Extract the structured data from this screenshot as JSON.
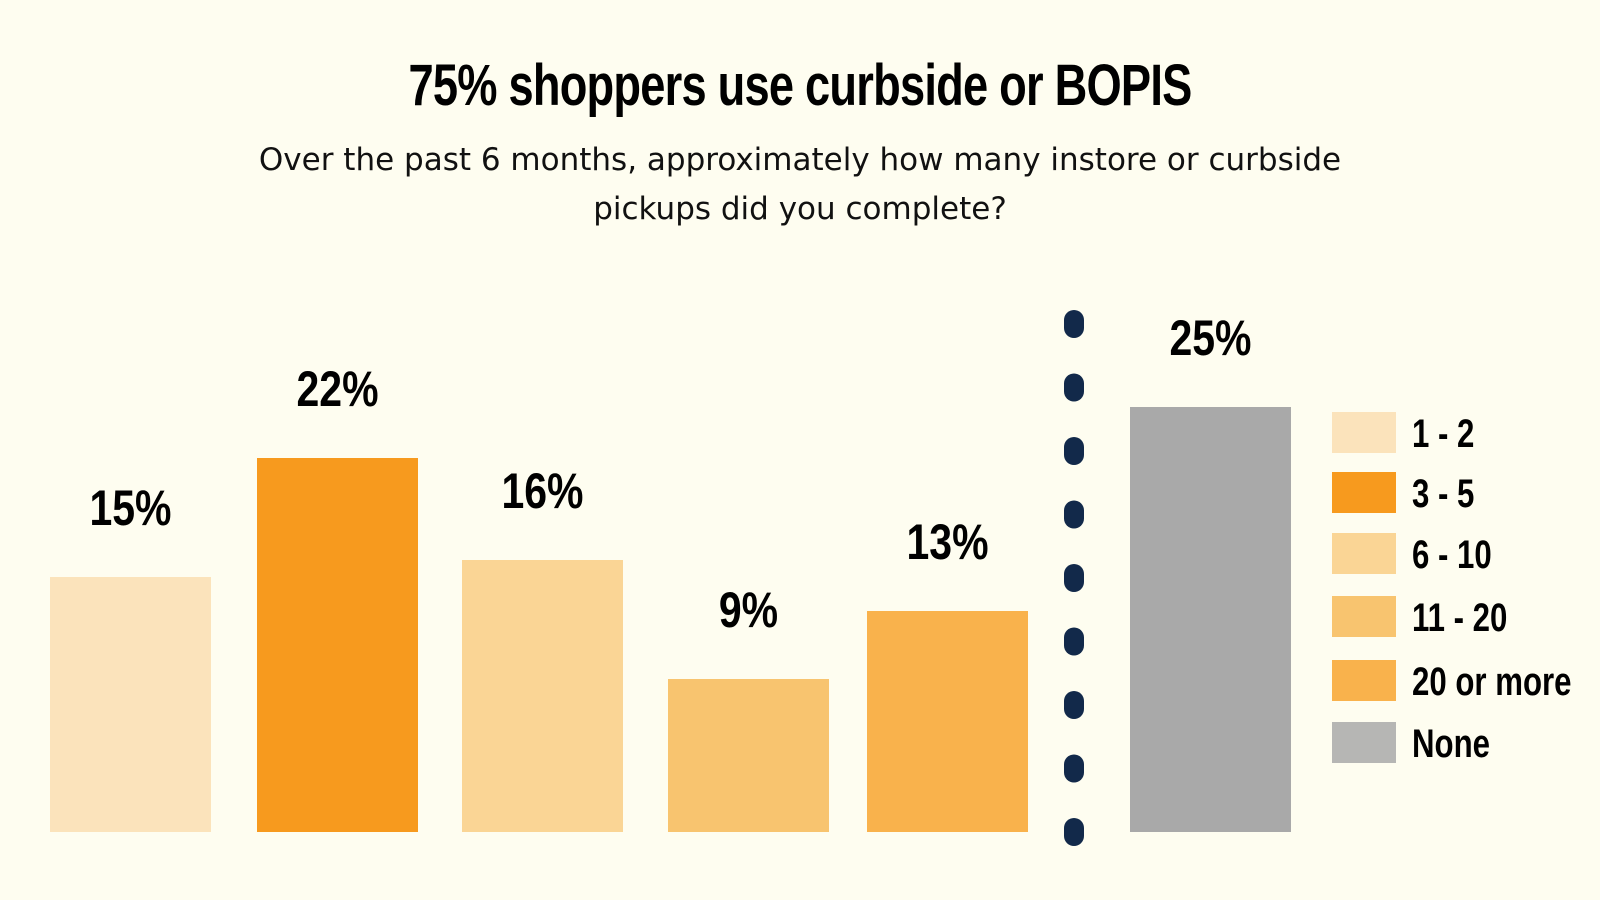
{
  "chart_data": {
    "type": "bar",
    "title": "75% shoppers use curbside or BOPIS",
    "subtitle": "Over the past 6 months, approximately how many instore or curbside pickups did you complete?",
    "categories": [
      "1 - 2",
      "3 - 5",
      "6 - 10",
      "11 - 20",
      "20 or more",
      "None"
    ],
    "values": [
      15,
      22,
      16,
      9,
      13,
      25
    ],
    "data_labels": [
      "15%",
      "22%",
      "16%",
      "9%",
      "13%",
      "25%"
    ],
    "colors": [
      "#fbe3bb",
      "#f79a1e",
      "#fad595",
      "#f8c46f",
      "#f9b24c",
      "#a9a9a9"
    ],
    "legend_colors": [
      "#fbe3bb",
      "#f79a1e",
      "#fad595",
      "#f8c46f",
      "#f9b24c",
      "#b6b6b4"
    ],
    "divider_color": "#12294a",
    "legend_placement": "right",
    "grid": false,
    "axes_visible": false
  }
}
